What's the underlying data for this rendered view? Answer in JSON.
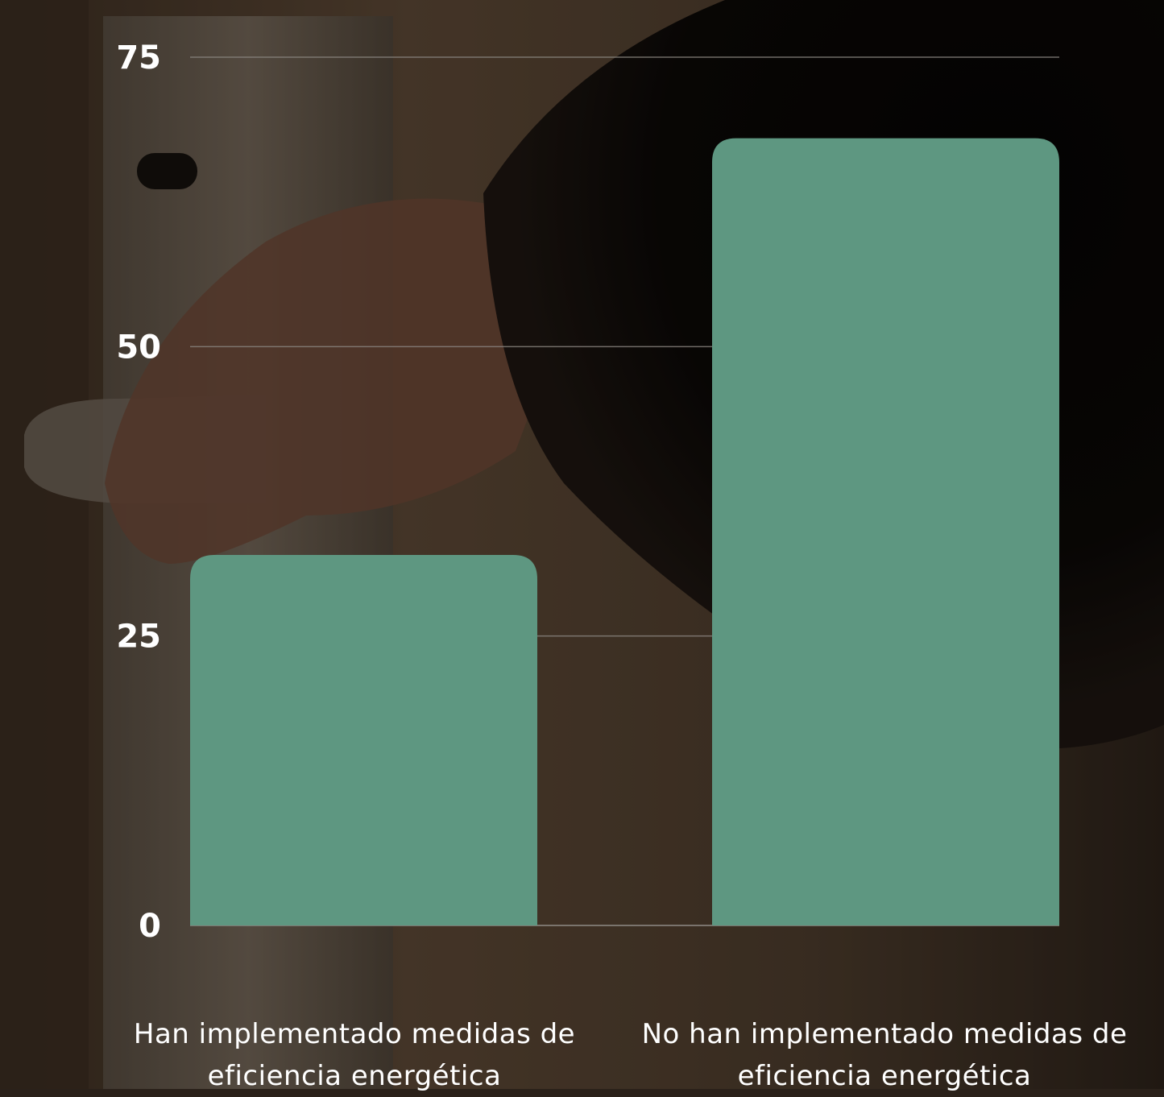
{
  "colors": {
    "bar": "#5e9781",
    "grid": "#8a8580",
    "text": "#ffffff"
  },
  "chart_data": {
    "type": "bar",
    "categories": [
      "Han implementado medidas de eficiencia energética",
      "No han implementado medidas de eficiencia energética"
    ],
    "values": [
      32,
      68
    ],
    "ylim": [
      0,
      75
    ],
    "yticks": [
      0,
      25,
      50,
      75
    ],
    "grid": true,
    "title": "",
    "xlabel": "",
    "ylabel": ""
  }
}
